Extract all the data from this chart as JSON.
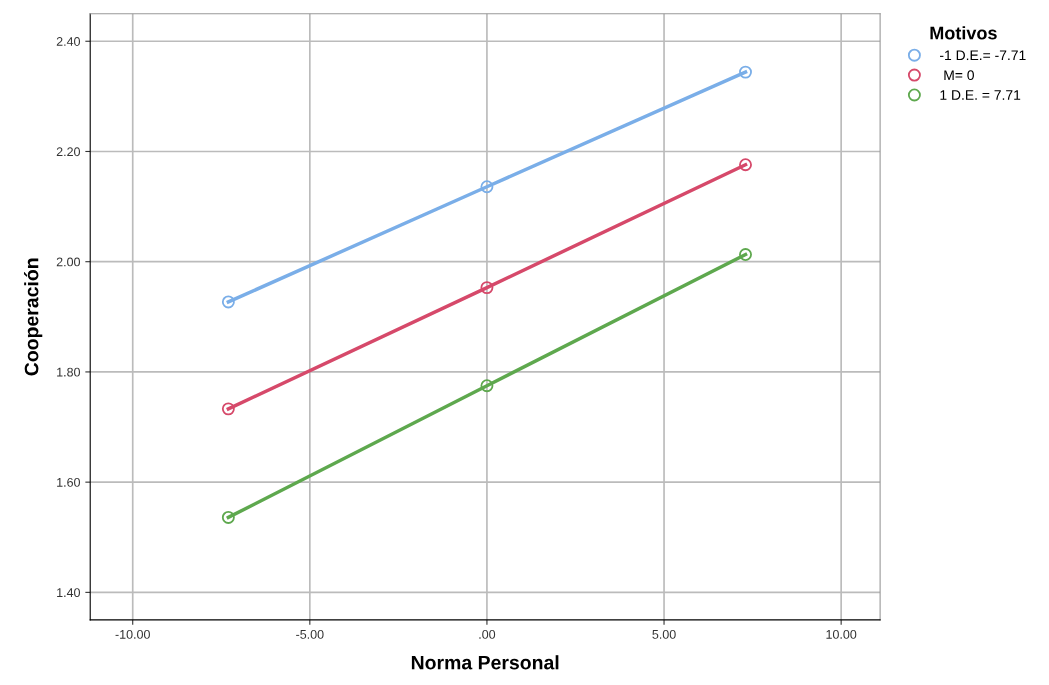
{
  "chart_data": {
    "type": "line",
    "xlabel": "Norma Personal",
    "ylabel": "Cooperación",
    "legend_title": "Motivos",
    "legend": "top right",
    "marker": "circle",
    "line_style": "solid",
    "grid": true,
    "x": [
      -7.3,
      0,
      7.3
    ],
    "series": [
      {
        "name": "-1 D.E.= -7.71",
        "color": "#7aaee8",
        "values": [
          1.927,
          2.136,
          2.344
        ]
      },
      {
        "name": " M= 0",
        "color": "#d6496a",
        "values": [
          1.733,
          1.953,
          2.176
        ]
      },
      {
        "name": "1 D.E. = 7.71",
        "color": "#5ea84e",
        "values": [
          1.536,
          1.775,
          2.013
        ]
      }
    ],
    "xlim": [
      -11.2,
      11.1
    ],
    "ylim": [
      1.35,
      2.45
    ],
    "xticks": [
      {
        "value": -10,
        "label": "-10.00"
      },
      {
        "value": -5,
        "label": "-5.00"
      },
      {
        "value": 0,
        "label": ".00"
      },
      {
        "value": 5,
        "label": "5.00"
      },
      {
        "value": 10,
        "label": "10.00"
      }
    ],
    "yticks": [
      {
        "value": 1.4,
        "label": "1.40"
      },
      {
        "value": 1.6,
        "label": "1.60"
      },
      {
        "value": 1.8,
        "label": "1.80"
      },
      {
        "value": 2.0,
        "label": "2.00"
      },
      {
        "value": 2.2,
        "label": "2.20"
      },
      {
        "value": 2.4,
        "label": "2.40"
      }
    ]
  }
}
